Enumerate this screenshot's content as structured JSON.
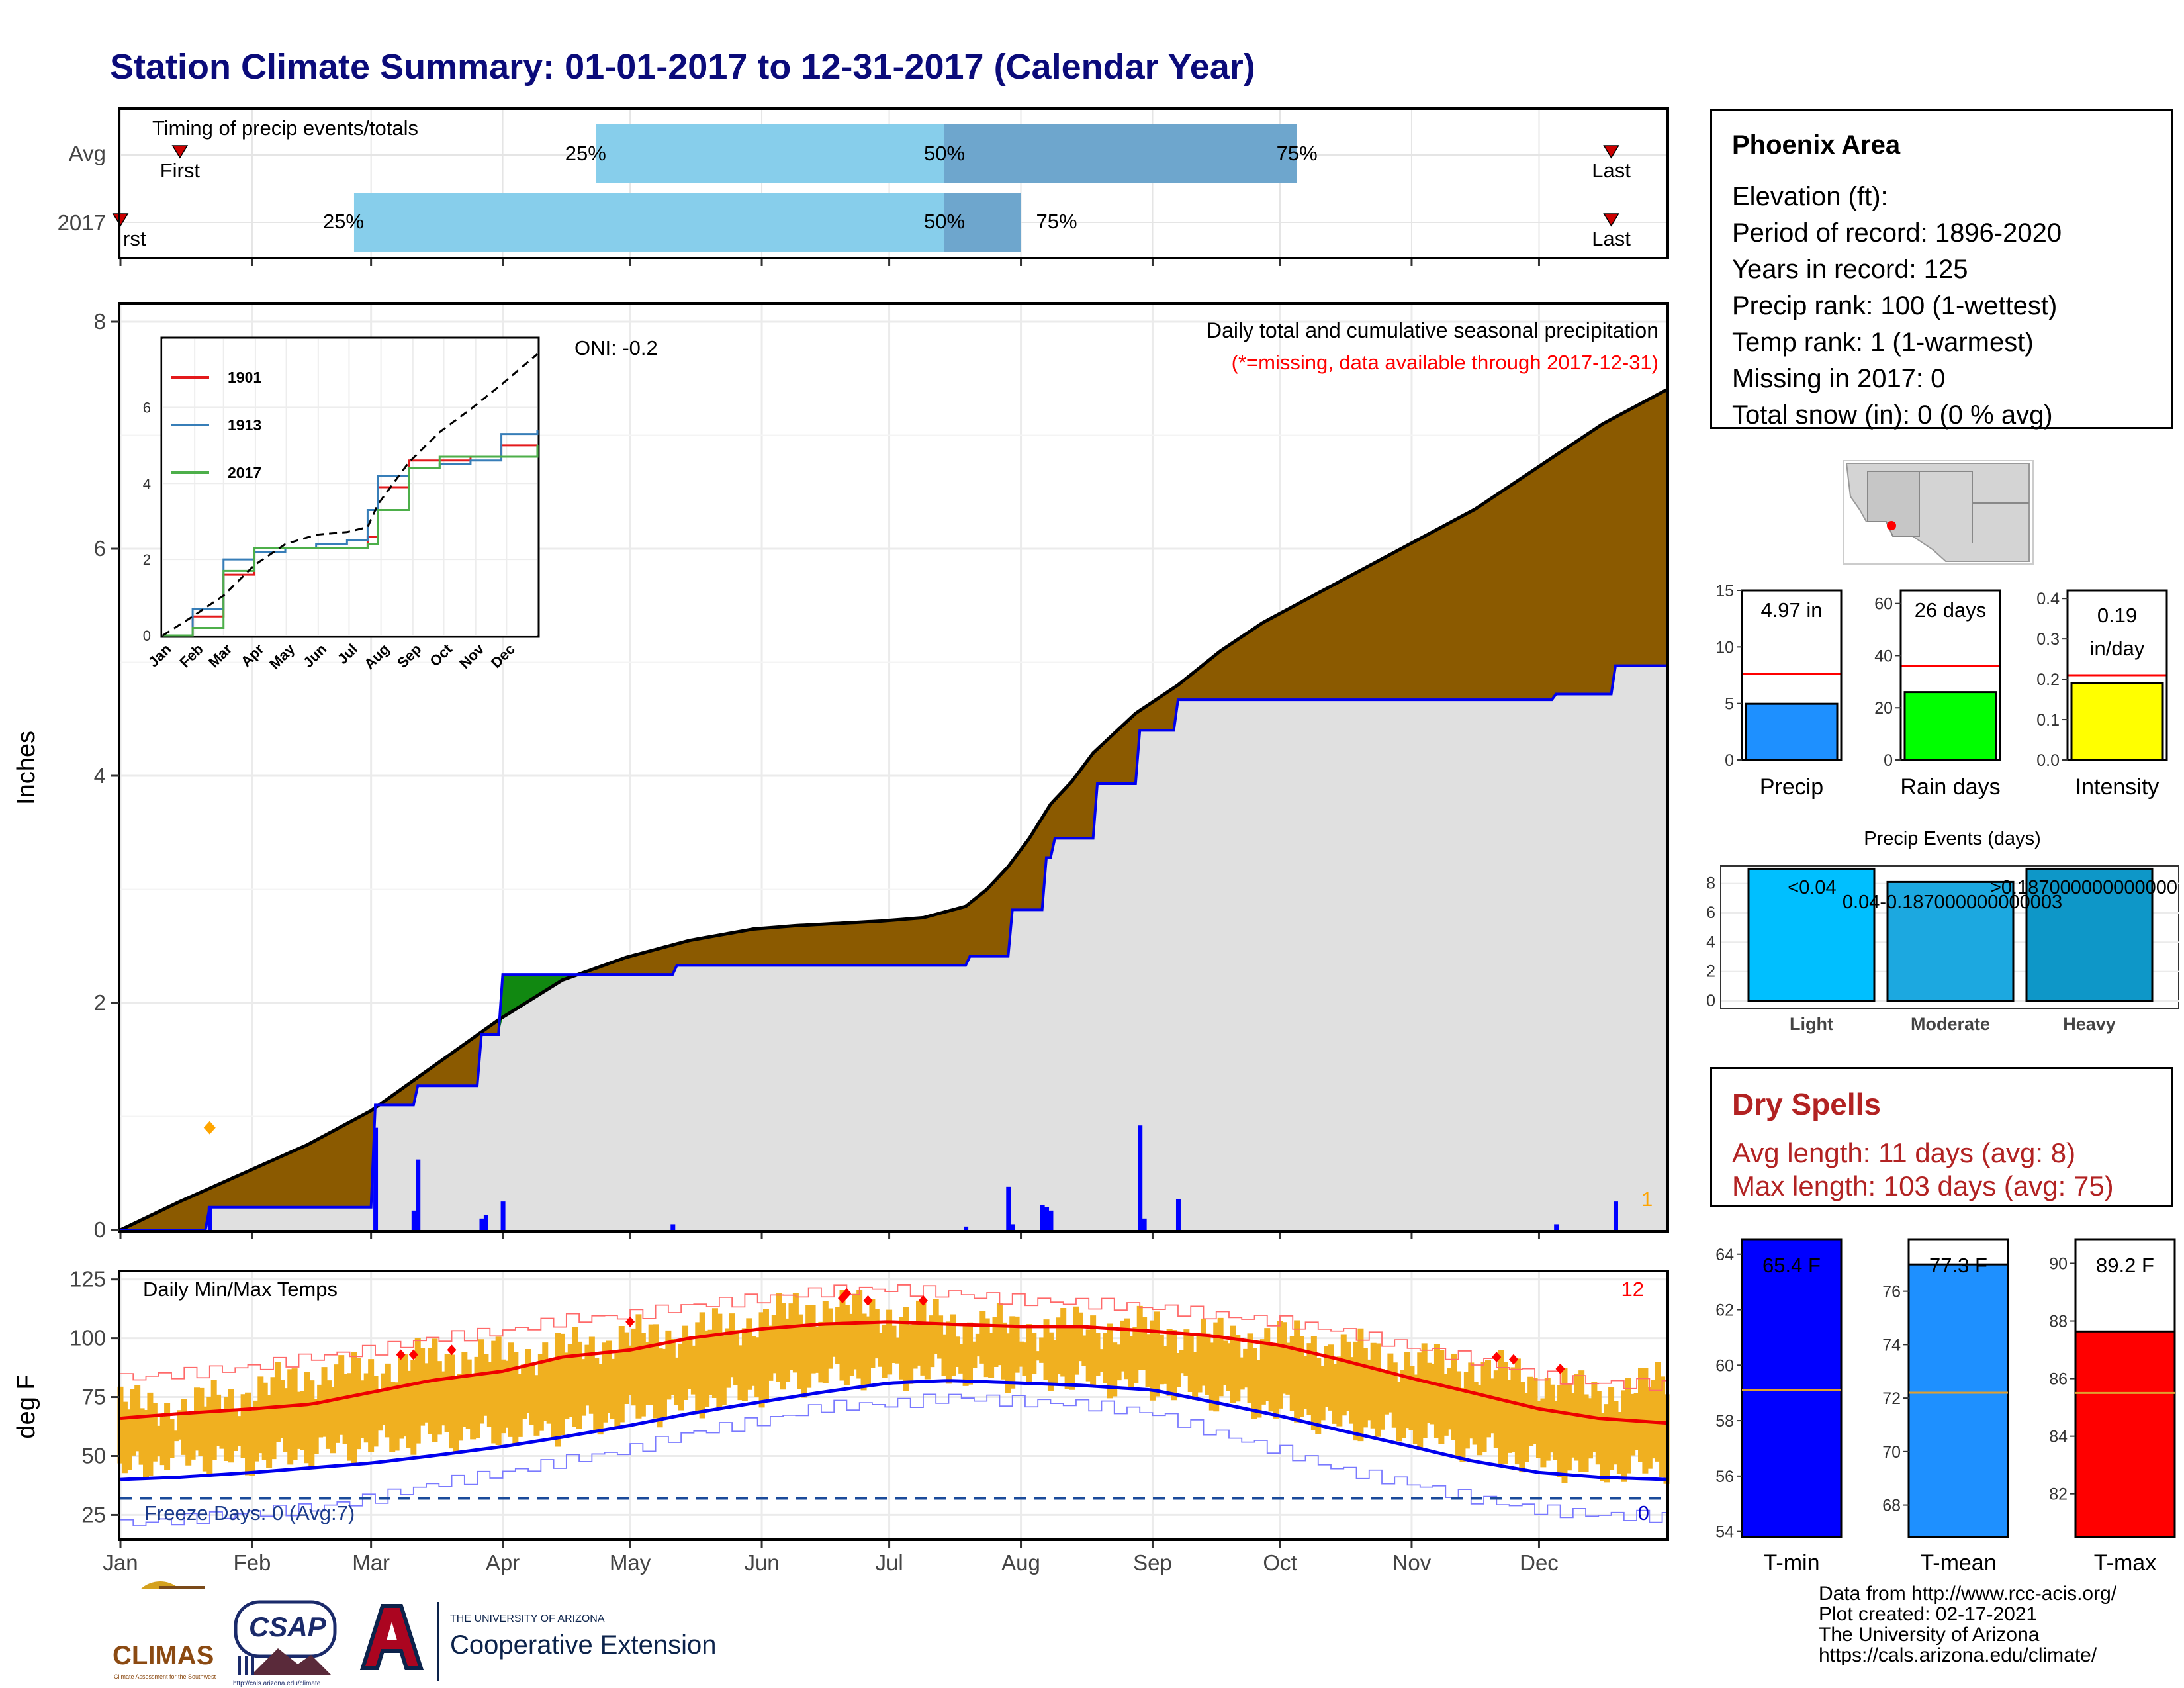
{
  "title": "Station Climate Summary: 01-01-2017 to 12-31-2017 (Calendar Year)",
  "months": [
    "Jan",
    "Feb",
    "Mar",
    "Apr",
    "May",
    "Jun",
    "Jul",
    "Aug",
    "Sep",
    "Oct",
    "Nov",
    "Dec"
  ],
  "timing": {
    "label": "Timing of precip events/totals",
    "rows": [
      "Avg",
      "2017"
    ],
    "first_label": "First",
    "first_label_cut": "rst",
    "last_label": "Last",
    "p25": "25%",
    "p50": "50%",
    "p75": "75%"
  },
  "main": {
    "ylabel": "Inches",
    "title_line1": "Daily total and cumulative seasonal precipitation",
    "title_line2": "(*=missing, data available through 2017-12-31)",
    "oni": "ONI: -0.2",
    "count_label": "1",
    "yticks": [
      "0",
      "2",
      "4",
      "6",
      "8"
    ]
  },
  "inset": {
    "legend": [
      "1901",
      "1913",
      "2017"
    ],
    "colors": [
      "#e41a1c",
      "#377eb8",
      "#4daf4a"
    ],
    "yticks": [
      "0",
      "2",
      "4",
      "6"
    ],
    "xticks": [
      "Jan",
      "Feb",
      "Mar",
      "Apr",
      "May",
      "Jun",
      "Jul",
      "Aug",
      "Sep",
      "Oct",
      "Nov",
      "Dec"
    ]
  },
  "temps": {
    "title": "Daily Min/Max Temps",
    "ylabel": "deg F",
    "yticks": [
      "25",
      "50",
      "75",
      "100",
      "125"
    ],
    "record_count": "12",
    "freeze_label": "Freeze Days: 0 (Avg:7)",
    "freeze_count": "0"
  },
  "info": {
    "station": "Phoenix Area",
    "lines": [
      "Elevation (ft):",
      "Period of record: 1896-2020",
      "Years in record: 125",
      "Precip rank: 100 (1-wettest)",
      "Temp rank: 1 (1-warmest)",
      "Missing in 2017: 0",
      "Total snow (in): 0 (0 % avg)"
    ]
  },
  "mini_bars": {
    "precip": {
      "label": "Precip",
      "value_label": "4.97 in",
      "yticks": [
        "0",
        "5",
        "10",
        "15"
      ]
    },
    "rain_days": {
      "label": "Rain days",
      "value_label": "26 days",
      "yticks": [
        "0",
        "20",
        "40",
        "60"
      ]
    },
    "intensity": {
      "label": "Intensity",
      "value_label": "0.19",
      "value_label2": "in/day",
      "yticks": [
        "0.0",
        "0.1",
        "0.2",
        "0.3",
        "0.4"
      ]
    }
  },
  "events": {
    "title": "Precip Events (days)",
    "categories": [
      "Light",
      "Moderate",
      "Heavy"
    ],
    "bar_labels": [
      "<0.04",
      "0.04-0.187000000000003",
      ">0.187000000000000"
    ],
    "yticks": [
      "0",
      "2",
      "4",
      "6",
      "8"
    ]
  },
  "dry_spells": {
    "header": "Dry Spells",
    "avg": "Avg length: 11 days (avg: 8)",
    "max": "Max length: 103 days (avg: 75)"
  },
  "temp_bars": {
    "tmin": {
      "label": "T-min",
      "value_label": "65.4 F",
      "yticks": [
        "54",
        "56",
        "58",
        "60",
        "62",
        "64"
      ]
    },
    "tmean": {
      "label": "T-mean",
      "value_label": "77.3 F",
      "yticks": [
        "68",
        "70",
        "72",
        "74",
        "76"
      ]
    },
    "tmax": {
      "label": "T-max",
      "value_label": "89.2 F",
      "yticks": [
        "82",
        "84",
        "86",
        "88",
        "90"
      ]
    }
  },
  "logos": {
    "climas": "CLIMAS",
    "climas_sub": "Climate Assessment for the Southwest",
    "csap": "CSAP",
    "csap_url": "http://cals.arizona.edu/climate",
    "ua_top": "THE UNIVERSITY OF ARIZONA",
    "ua_bottom": "Cooperative Extension"
  },
  "credits": [
    "Data from http://www.rcc-acis.org/",
    "Plot created: 02-17-2021",
    "The University of Arizona",
    "https://cals.arizona.edu/climate/"
  ],
  "chart_data": [
    {
      "type": "bar",
      "name": "timing",
      "rows": [
        "Avg",
        "2017"
      ],
      "units": "day of year",
      "avg": {
        "first": 15,
        "p25": 113,
        "p50": 195,
        "p75": 278,
        "last": 352
      },
      "y2017": {
        "first": 1,
        "p25": 56,
        "p50": 195,
        "p75": 213,
        "last": 352
      }
    },
    {
      "type": "area",
      "name": "cumulative precipitation",
      "ylabel": "Inches",
      "ylim": [
        0,
        8
      ],
      "avg_cumulative": {
        "x": [
          1,
          15,
          30,
          45,
          60,
          75,
          90,
          105,
          120,
          135,
          150,
          160,
          170,
          180,
          190,
          200,
          205,
          210,
          215,
          220,
          225,
          230,
          240,
          250,
          260,
          270,
          280,
          290,
          300,
          310,
          320,
          330,
          340,
          350,
          365
        ],
        "y": [
          0,
          0.25,
          0.5,
          0.75,
          1.05,
          1.45,
          1.85,
          2.2,
          2.4,
          2.55,
          2.65,
          2.68,
          2.7,
          2.72,
          2.75,
          2.85,
          3.0,
          3.2,
          3.45,
          3.75,
          3.95,
          4.2,
          4.55,
          4.8,
          5.1,
          5.35,
          5.55,
          5.75,
          5.95,
          6.15,
          6.35,
          6.6,
          6.85,
          7.1,
          7.4
        ]
      },
      "cumulative_2017": {
        "x": [
          1,
          21,
          22,
          60,
          61,
          70,
          71,
          85,
          86,
          90,
          91,
          131,
          132,
          200,
          201,
          210,
          211,
          218,
          219,
          220,
          221,
          230,
          231,
          240,
          241,
          249,
          250,
          338,
          339,
          352,
          353,
          365
        ],
        "y": [
          0,
          0,
          0.2,
          0.2,
          1.1,
          1.1,
          1.27,
          1.27,
          1.72,
          1.72,
          2.25,
          2.25,
          2.33,
          2.33,
          2.41,
          2.41,
          2.82,
          2.82,
          3.28,
          3.28,
          3.45,
          3.45,
          3.93,
          3.93,
          4.4,
          4.4,
          4.67,
          4.67,
          4.72,
          4.72,
          4.97,
          4.97
        ]
      },
      "daily_2017": {
        "x": [
          22,
          61,
          70,
          71,
          86,
          87,
          91,
          131,
          200,
          210,
          211,
          218,
          219,
          220,
          241,
          242,
          250,
          339,
          353
        ],
        "y": [
          0.2,
          0.9,
          0.17,
          0.62,
          0.1,
          0.13,
          0.25,
          0.05,
          0.03,
          0.38,
          0.05,
          0.22,
          0.2,
          0.17,
          0.92,
          0.1,
          0.27,
          0.05,
          0.25
        ]
      },
      "oni": -0.2
    },
    {
      "type": "line",
      "name": "inset cumulative comparison",
      "ylim": [
        0,
        8
      ],
      "x": [
        1,
        30,
        60,
        90,
        120,
        150,
        180,
        200,
        210,
        240,
        270,
        300,
        330,
        365
      ],
      "series": [
        {
          "name": "1901",
          "values": [
            0,
            0.5,
            1.6,
            2.3,
            2.3,
            2.3,
            2.3,
            2.6,
            3.9,
            4.6,
            4.6,
            4.7,
            5.0,
            5.0
          ]
        },
        {
          "name": "1913",
          "values": [
            0,
            0.7,
            2.0,
            2.2,
            2.3,
            2.4,
            2.5,
            3.3,
            4.2,
            4.4,
            4.5,
            4.6,
            5.3,
            5.4
          ]
        },
        {
          "name": "2017",
          "values": [
            0,
            0.2,
            1.7,
            2.3,
            2.3,
            2.3,
            2.3,
            2.4,
            3.3,
            4.4,
            4.7,
            4.7,
            4.7,
            5.0
          ]
        }
      ],
      "avg_values": [
        0,
        0.5,
        1.05,
        1.85,
        2.4,
        2.65,
        2.72,
        2.85,
        3.45,
        4.55,
        5.35,
        5.95,
        6.6,
        7.4
      ]
    },
    {
      "type": "line",
      "name": "daily temperatures",
      "ylabel": "deg F",
      "ylim": [
        15,
        128
      ],
      "x": [
        1,
        15,
        32,
        46,
        60,
        74,
        91,
        105,
        121,
        135,
        152,
        166,
        182,
        196,
        213,
        227,
        244,
        258,
        274,
        288,
        305,
        319,
        335,
        349,
        365
      ],
      "series": [
        {
          "name": "normal max",
          "values": [
            66,
            68,
            70,
            72,
            77,
            82,
            86,
            92,
            95,
            100,
            104,
            106,
            107,
            106,
            105,
            105,
            103,
            101,
            97,
            91,
            83,
            77,
            70,
            66,
            64
          ]
        },
        {
          "name": "normal min",
          "values": [
            40,
            41,
            43,
            45,
            47,
            50,
            54,
            58,
            63,
            68,
            73,
            77,
            81,
            82,
            81,
            80,
            78,
            73,
            67,
            61,
            54,
            48,
            43,
            41,
            40
          ]
        },
        {
          "name": "record max",
          "values": [
            83,
            85,
            88,
            92,
            95,
            100,
            103,
            108,
            110,
            114,
            117,
            120,
            121,
            119,
            116,
            115,
            113,
            110,
            107,
            103,
            96,
            91,
            84,
            81,
            80
          ]
        },
        {
          "name": "record min",
          "values": [
            21,
            23,
            26,
            28,
            32,
            38,
            43,
            48,
            53,
            60,
            65,
            71,
            72,
            75,
            73,
            72,
            68,
            60,
            52,
            44,
            38,
            32,
            27,
            25,
            24
          ]
        },
        {
          "name": "2017 max",
          "values": [
            72,
            70,
            77,
            84,
            86,
            92,
            92,
            95,
            100,
            102,
            108,
            114,
            110,
            107,
            104,
            105,
            104,
            100,
            100,
            96,
            90,
            88,
            82,
            76,
            82
          ]
        },
        {
          "name": "2017 min",
          "values": [
            44,
            50,
            48,
            52,
            55,
            58,
            60,
            62,
            68,
            72,
            78,
            84,
            85,
            86,
            84,
            83,
            80,
            76,
            70,
            64,
            60,
            54,
            48,
            44,
            46
          ]
        }
      ],
      "freeze_line": 32
    },
    {
      "type": "bar",
      "name": "annual totals",
      "categories": [
        "Precip",
        "Rain days",
        "Intensity"
      ],
      "values": [
        4.97,
        26,
        0.19
      ],
      "averages": [
        7.6,
        36,
        0.21
      ],
      "ylims": [
        [
          0,
          15
        ],
        [
          0,
          65
        ],
        [
          0,
          0.42
        ]
      ],
      "colors": [
        "#1e90ff",
        "#00ff00",
        "#ffff00"
      ]
    },
    {
      "type": "bar",
      "name": "precip events",
      "categories": [
        "Light",
        "Moderate",
        "Heavy"
      ],
      "values": [
        9,
        8.1,
        9
      ],
      "ylim": [
        0,
        9.2
      ],
      "colors": [
        "#00bfff",
        "#1ca8e0",
        "#0e97c8"
      ]
    },
    {
      "type": "bar",
      "name": "annual temperatures",
      "categories": [
        "T-min",
        "T-mean",
        "T-max"
      ],
      "values": [
        65.4,
        77.3,
        89.2
      ],
      "averages": [
        59.1,
        72.2,
        85.5
      ],
      "ylims": [
        [
          53.8,
          64.4
        ],
        [
          66.8,
          77.8
        ],
        [
          80.5,
          90.7
        ]
      ],
      "colors": [
        "#0000ff",
        "#1e90ff",
        "#ff0000"
      ]
    }
  ]
}
